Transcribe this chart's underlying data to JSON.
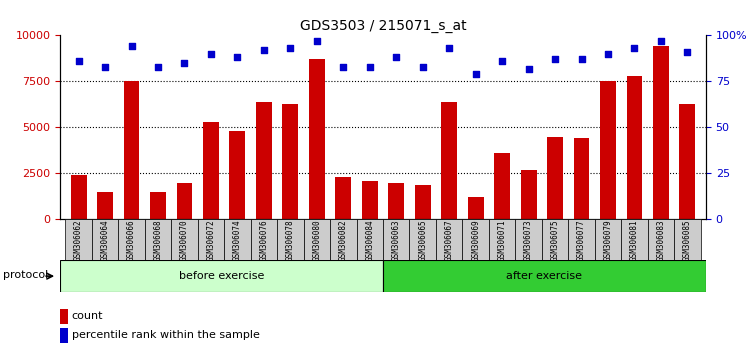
{
  "title": "GDS3503 / 215071_s_at",
  "categories": [
    "GSM306062",
    "GSM306064",
    "GSM306066",
    "GSM306068",
    "GSM306070",
    "GSM306072",
    "GSM306074",
    "GSM306076",
    "GSM306078",
    "GSM306080",
    "GSM306082",
    "GSM306084",
    "GSM306063",
    "GSM306065",
    "GSM306067",
    "GSM306069",
    "GSM306071",
    "GSM306073",
    "GSM306075",
    "GSM306077",
    "GSM306079",
    "GSM306081",
    "GSM306083",
    "GSM306085"
  ],
  "counts": [
    2400,
    1500,
    7500,
    1500,
    2000,
    5300,
    4800,
    6400,
    6300,
    8700,
    2300,
    2100,
    2000,
    1900,
    6400,
    1200,
    3600,
    2700,
    4500,
    4400,
    7500,
    7800,
    9400,
    6300
  ],
  "percentiles": [
    86,
    83,
    94,
    83,
    85,
    90,
    88,
    92,
    93,
    97,
    83,
    83,
    88,
    83,
    93,
    79,
    86,
    82,
    87,
    87,
    90,
    93,
    97,
    91
  ],
  "before_count": 12,
  "ylim_left": [
    0,
    10000
  ],
  "ylim_right": [
    0,
    100
  ],
  "yticks_left": [
    0,
    2500,
    5000,
    7500,
    10000
  ],
  "yticks_right": [
    0,
    25,
    50,
    75,
    100
  ],
  "bar_color": "#cc0000",
  "dot_color": "#0000cc",
  "before_color": "#ccffcc",
  "after_color": "#33cc33",
  "header_bg": "#cccccc",
  "protocol_label": "protocol",
  "before_label": "before exercise",
  "after_label": "after exercise",
  "legend_count_label": "count",
  "legend_pct_label": "percentile rank within the sample"
}
